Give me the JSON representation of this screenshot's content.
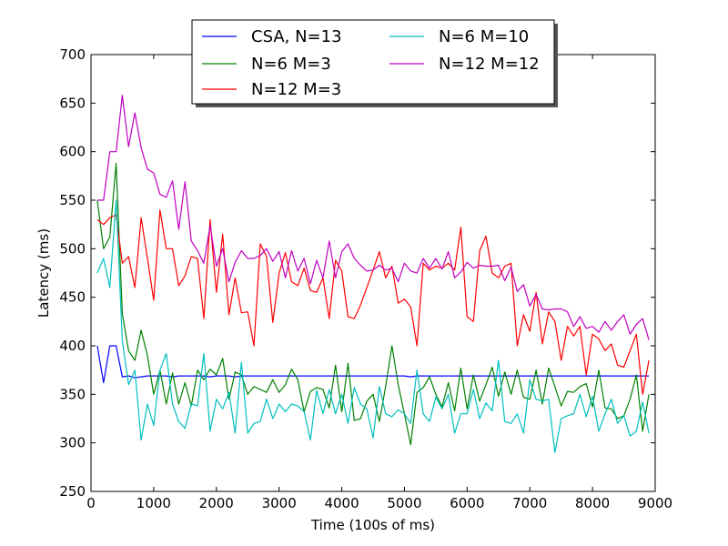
{
  "chart_data": {
    "type": "line",
    "xlabel": "Time (100s of ms)",
    "ylabel": "Latency (ms)",
    "xlim": [
      0,
      9000
    ],
    "ylim": [
      250,
      700
    ],
    "xticks": [
      0,
      1000,
      2000,
      3000,
      4000,
      5000,
      6000,
      7000,
      8000,
      9000
    ],
    "yticks": [
      250,
      300,
      350,
      400,
      450,
      500,
      550,
      600,
      650,
      700
    ],
    "grid": false,
    "legend_placement": "top-center",
    "x": [
      100,
      200,
      300,
      400,
      500,
      600,
      700,
      800,
      900,
      1000,
      1100,
      1200,
      1300,
      1400,
      1500,
      1600,
      1700,
      1800,
      1900,
      2000,
      2100,
      2200,
      2300,
      2400,
      2500,
      2600,
      2700,
      2800,
      2900,
      3000,
      3100,
      3200,
      3300,
      3400,
      3500,
      3600,
      3700,
      3800,
      3900,
      4000,
      4100,
      4200,
      4300,
      4400,
      4500,
      4600,
      4700,
      4800,
      4900,
      5000,
      5100,
      5200,
      5300,
      5400,
      5500,
      5600,
      5700,
      5800,
      5900,
      6000,
      6100,
      6200,
      6300,
      6400,
      6500,
      6600,
      6700,
      6800,
      6900,
      7000,
      7100,
      7200,
      7300,
      7400,
      7500,
      7600,
      7700,
      7800,
      7900,
      8000,
      8100,
      8200,
      8300,
      8400,
      8500,
      8600,
      8700,
      8800,
      8900
    ],
    "series": [
      {
        "name": "CSA, N=13",
        "color": "#0000ff",
        "values": [
          400,
          362,
          400,
          400,
          368,
          369,
          367,
          368,
          369,
          369,
          369,
          369,
          368,
          369,
          369,
          369,
          369,
          369,
          368,
          369,
          369,
          369,
          368,
          369,
          369,
          369,
          369,
          369,
          369,
          369,
          369,
          369,
          369,
          369,
          369,
          369,
          369,
          369,
          369,
          369,
          369,
          369,
          369,
          369,
          369,
          369,
          369,
          369,
          369,
          369,
          368,
          369,
          369,
          369,
          369,
          369,
          369,
          369,
          369,
          369,
          369,
          369,
          369,
          369,
          369,
          369,
          369,
          369,
          369,
          369,
          369,
          369,
          369,
          369,
          369,
          369,
          369,
          369,
          369,
          369,
          369,
          369,
          369,
          369,
          369,
          369,
          369,
          369,
          369
        ]
      },
      {
        "name": "N=6 M=3",
        "color": "#008000",
        "values": [
          550,
          500,
          512,
          588,
          433,
          395,
          385,
          416,
          390,
          350,
          375,
          340,
          372,
          340,
          362,
          338,
          375,
          365,
          376,
          370,
          387,
          345,
          373,
          370,
          350,
          358,
          355,
          352,
          365,
          352,
          360,
          376,
          365,
          332,
          353,
          357,
          355,
          336,
          380,
          332,
          382,
          323,
          325,
          343,
          350,
          322,
          358,
          400,
          360,
          330,
          298,
          352,
          357,
          368,
          350,
          337,
          362,
          333,
          377,
          335,
          370,
          343,
          360,
          378,
          348,
          373,
          350,
          375,
          347,
          345,
          375,
          340,
          377,
          358,
          338,
          353,
          352,
          358,
          361,
          337,
          375,
          336,
          335,
          325,
          328,
          345,
          370,
          312,
          350
        ]
      },
      {
        "name": "N=12 M=3",
        "color": "#ff0000",
        "values": [
          530,
          525,
          532,
          535,
          485,
          492,
          460,
          532,
          490,
          447,
          540,
          500,
          500,
          462,
          472,
          492,
          490,
          428,
          530,
          455,
          515,
          432,
          470,
          434,
          435,
          400,
          505,
          492,
          424,
          475,
          496,
          466,
          462,
          480,
          457,
          455,
          470,
          428,
          488,
          477,
          430,
          428,
          442,
          460,
          478,
          497,
          470,
          482,
          444,
          448,
          440,
          400,
          485,
          478,
          482,
          480,
          485,
          478,
          522,
          430,
          425,
          498,
          513,
          475,
          470,
          482,
          485,
          400,
          432,
          415,
          455,
          402,
          435,
          425,
          385,
          420,
          410,
          420,
          370,
          412,
          407,
          395,
          402,
          380,
          378,
          395,
          412,
          350,
          385
        ]
      },
      {
        "name": "N=6 M=10",
        "color": "#00bfbf",
        "values": [
          475,
          490,
          460,
          550,
          405,
          360,
          375,
          303,
          340,
          318,
          375,
          392,
          340,
          322,
          315,
          340,
          338,
          392,
          312,
          345,
          335,
          352,
          310,
          383,
          310,
          320,
          322,
          345,
          325,
          340,
          332,
          340,
          338,
          332,
          303,
          354,
          330,
          355,
          330,
          350,
          320,
          357,
          340,
          335,
          305,
          358,
          330,
          327,
          334,
          330,
          320,
          375,
          330,
          322,
          347,
          335,
          350,
          310,
          330,
          330,
          355,
          325,
          341,
          333,
          385,
          322,
          320,
          330,
          310,
          365,
          345,
          343,
          345,
          290,
          325,
          328,
          330,
          350,
          327,
          348,
          312,
          330,
          345,
          320,
          328,
          307,
          312,
          342,
          310
        ]
      },
      {
        "name": "N=12 M=12",
        "color": "#bf00bf",
        "values": [
          550,
          550,
          600,
          600,
          658,
          605,
          640,
          604,
          582,
          578,
          556,
          553,
          570,
          520,
          569,
          508,
          498,
          485,
          524,
          482,
          500,
          466,
          486,
          498,
          490,
          490,
          493,
          500,
          487,
          497,
          470,
          498,
          477,
          490,
          464,
          488,
          470,
          508,
          470,
          497,
          505,
          490,
          483,
          477,
          478,
          483,
          478,
          480,
          466,
          485,
          477,
          475,
          490,
          480,
          490,
          479,
          497,
          470,
          476,
          486,
          480,
          483,
          482,
          482,
          483,
          467,
          481,
          456,
          463,
          441,
          453,
          438,
          437,
          438,
          438,
          435,
          420,
          430,
          418,
          420,
          414,
          425,
          416,
          425,
          432,
          412,
          422,
          428,
          406
        ]
      }
    ]
  }
}
